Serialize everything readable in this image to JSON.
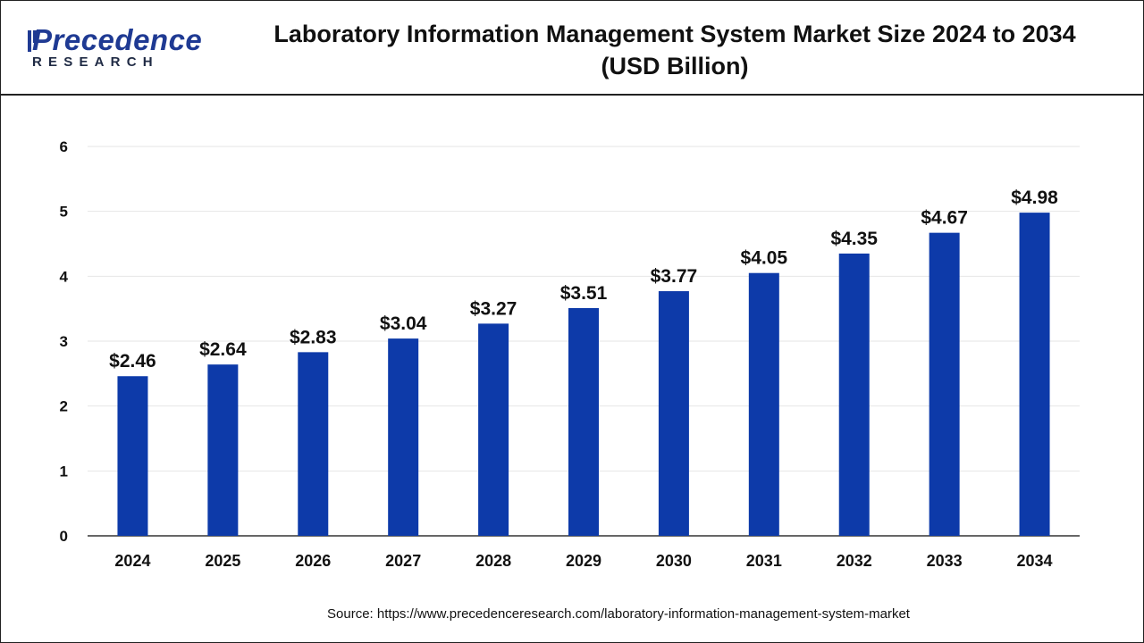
{
  "branding": {
    "logo_word": "Precedence",
    "logo_sub": "RESEARCH"
  },
  "colors": {
    "bar": "#0d3aa9",
    "text": "#111111",
    "grid": "#e6e6e6",
    "axis": "#333333"
  },
  "chart_data": {
    "type": "bar",
    "title": "Laboratory Information Management System Market Size 2024 to 2034\n(USD Billion)",
    "categories": [
      "2024",
      "2025",
      "2026",
      "2027",
      "2028",
      "2029",
      "2030",
      "2031",
      "2032",
      "2033",
      "2034"
    ],
    "values": [
      2.46,
      2.64,
      2.83,
      3.04,
      3.27,
      3.51,
      3.77,
      4.05,
      4.35,
      4.67,
      4.98
    ],
    "data_labels": [
      "$2.46",
      "$2.64",
      "$2.83",
      "$3.04",
      "$3.27",
      "$3.51",
      "$3.77",
      "$4.05",
      "$4.35",
      "$4.67",
      "$4.98"
    ],
    "yticks": [
      "0",
      "1",
      "2",
      "3",
      "4",
      "5",
      "6"
    ],
    "ylim": [
      0,
      6
    ],
    "xlabel": "",
    "ylabel": "",
    "grid": true,
    "legend": "none"
  },
  "source": "Source: https://www.precedenceresearch.com/laboratory-information-management-system-market"
}
